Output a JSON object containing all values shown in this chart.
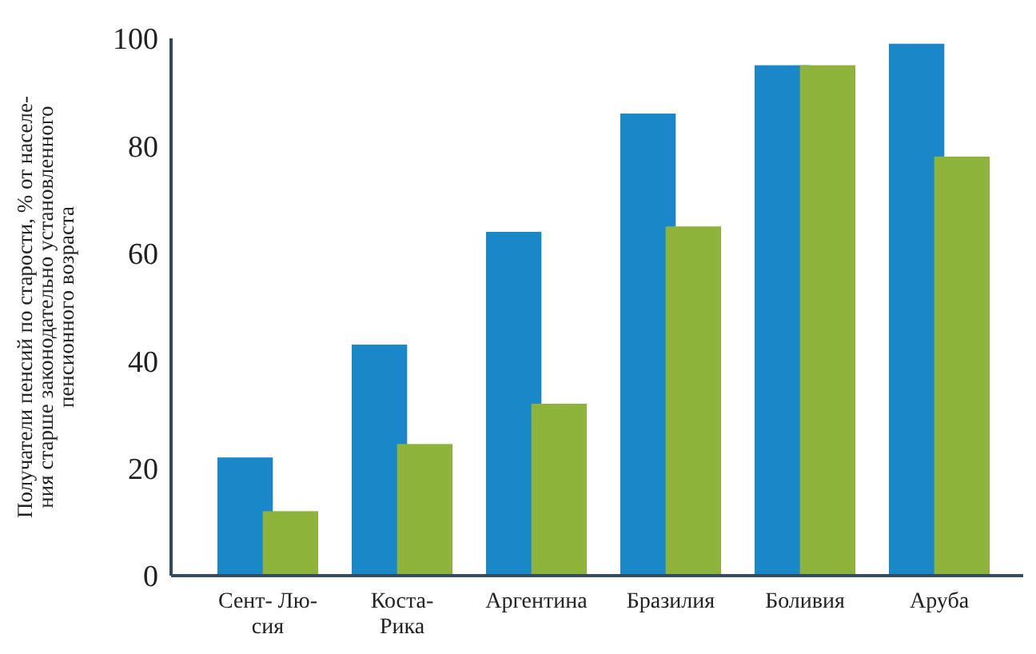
{
  "chart_data": {
    "type": "bar",
    "ylabel": "Получатели пенсий по старости, % от населе-\nния старше законодательно установленного\nпенсионного возраста",
    "categories": [
      "Сент- Лю-\nсия",
      "Коста-\nРика",
      "Аргентина",
      "Бразилия",
      "Боливия",
      "Аруба"
    ],
    "series": [
      {
        "color": "#1a87c9",
        "values": [
          22,
          43,
          64,
          86,
          95,
          99
        ]
      },
      {
        "color": "#8db33a",
        "values": [
          12,
          24.5,
          32,
          65,
          95,
          78
        ]
      }
    ],
    "ylim": [
      0,
      100
    ],
    "yticks": [
      0,
      20,
      40,
      60,
      80,
      100
    ]
  }
}
